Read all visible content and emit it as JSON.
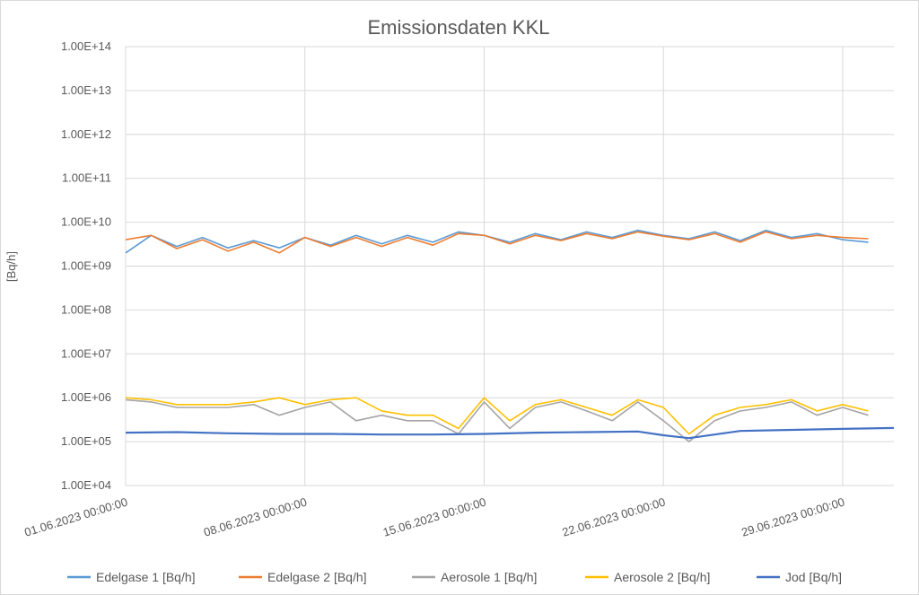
{
  "chart_data": {
    "type": "line",
    "title": "Emissionsdaten KKL",
    "xlabel": "",
    "ylabel": "[Bq/h]",
    "y_scale": "log",
    "ylim": [
      10000,
      100000000000000
    ],
    "y_ticks": [
      "1.00E+04",
      "1.00E+05",
      "1.00E+06",
      "1.00E+07",
      "1.00E+08",
      "1.00E+09",
      "1.00E+10",
      "1.00E+11",
      "1.00E+12",
      "1.00E+13",
      "1.00E+14"
    ],
    "xlim": [
      "01.06.2023 00:00:00",
      "01.07.2023 00:00:00"
    ],
    "x_ticks": [
      "01.06.2023 00:00:00",
      "08.06.2023 00:00:00",
      "15.06.2023 00:00:00",
      "22.06.2023 00:00:00",
      "29.06.2023 00:00:00"
    ],
    "grid": true,
    "legend_position": "bottom",
    "colors": {
      "Edelgase 1 [Bq/h]": "#5b9bd5",
      "Edelgase 2 [Bq/h]": "#ed7d31",
      "Aerosole 1 [Bq/h]": "#a5a5a5",
      "Aerosole 2 [Bq/h]": "#ffc000",
      "Jod [Bq/h]": "#4472c4"
    },
    "series": [
      {
        "name": "Edelgase 1 [Bq/h]",
        "x": [
          "2023-06-01",
          "2023-06-02",
          "2023-06-03",
          "2023-06-04",
          "2023-06-05",
          "2023-06-06",
          "2023-06-07",
          "2023-06-08",
          "2023-06-09",
          "2023-06-10",
          "2023-06-11",
          "2023-06-12",
          "2023-06-13",
          "2023-06-14",
          "2023-06-15",
          "2023-06-16",
          "2023-06-17",
          "2023-06-18",
          "2023-06-19",
          "2023-06-20",
          "2023-06-21",
          "2023-06-22",
          "2023-06-23",
          "2023-06-24",
          "2023-06-25",
          "2023-06-26",
          "2023-06-27",
          "2023-06-28",
          "2023-06-29",
          "2023-06-30"
        ],
        "y": [
          2000000000,
          5000000000,
          2800000000,
          4500000000,
          2600000000,
          3800000000,
          2600000000,
          4500000000,
          3000000000,
          5000000000,
          3200000000,
          5000000000,
          3500000000,
          6000000000,
          5000000000,
          3500000000,
          5500000000,
          4000000000,
          6000000000,
          4500000000,
          6500000000,
          5000000000,
          4200000000,
          6000000000,
          3800000000,
          6500000000,
          4500000000,
          5500000000,
          4000000000,
          3500000000
        ]
      },
      {
        "name": "Edelgase 2 [Bq/h]",
        "x": [
          "2023-06-01",
          "2023-06-02",
          "2023-06-03",
          "2023-06-04",
          "2023-06-05",
          "2023-06-06",
          "2023-06-07",
          "2023-06-08",
          "2023-06-09",
          "2023-06-10",
          "2023-06-11",
          "2023-06-12",
          "2023-06-13",
          "2023-06-14",
          "2023-06-15",
          "2023-06-16",
          "2023-06-17",
          "2023-06-18",
          "2023-06-19",
          "2023-06-20",
          "2023-06-21",
          "2023-06-22",
          "2023-06-23",
          "2023-06-24",
          "2023-06-25",
          "2023-06-26",
          "2023-06-27",
          "2023-06-28",
          "2023-06-29",
          "2023-06-30"
        ],
        "y": [
          4000000000,
          5000000000,
          2500000000,
          4000000000,
          2200000000,
          3500000000,
          2000000000,
          4500000000,
          2800000000,
          4500000000,
          2800000000,
          4500000000,
          3000000000,
          5500000000,
          5000000000,
          3200000000,
          5000000000,
          3800000000,
          5500000000,
          4200000000,
          6000000000,
          4800000000,
          4000000000,
          5500000000,
          3500000000,
          6000000000,
          4200000000,
          5000000000,
          4500000000,
          4200000000
        ]
      },
      {
        "name": "Aerosole 1 [Bq/h]",
        "x": [
          "2023-06-01",
          "2023-06-02",
          "2023-06-03",
          "2023-06-04",
          "2023-06-05",
          "2023-06-06",
          "2023-06-07",
          "2023-06-08",
          "2023-06-09",
          "2023-06-10",
          "2023-06-11",
          "2023-06-12",
          "2023-06-13",
          "2023-06-14",
          "2023-06-15",
          "2023-06-16",
          "2023-06-17",
          "2023-06-18",
          "2023-06-19",
          "2023-06-20",
          "2023-06-21",
          "2023-06-22",
          "2023-06-23",
          "2023-06-24",
          "2023-06-25",
          "2023-06-26",
          "2023-06-27",
          "2023-06-28",
          "2023-06-29",
          "2023-06-30"
        ],
        "y": [
          900000,
          800000,
          600000,
          600000,
          600000,
          700000,
          400000,
          600000,
          800000,
          300000,
          400000,
          300000,
          300000,
          150000,
          800000,
          200000,
          600000,
          800000,
          500000,
          300000,
          800000,
          300000,
          100000,
          300000,
          500000,
          600000,
          800000,
          400000,
          600000,
          400000
        ]
      },
      {
        "name": "Aerosole 2 [Bq/h]",
        "x": [
          "2023-06-01",
          "2023-06-02",
          "2023-06-03",
          "2023-06-04",
          "2023-06-05",
          "2023-06-06",
          "2023-06-07",
          "2023-06-08",
          "2023-06-09",
          "2023-06-10",
          "2023-06-11",
          "2023-06-12",
          "2023-06-13",
          "2023-06-14",
          "2023-06-15",
          "2023-06-16",
          "2023-06-17",
          "2023-06-18",
          "2023-06-19",
          "2023-06-20",
          "2023-06-21",
          "2023-06-22",
          "2023-06-23",
          "2023-06-24",
          "2023-06-25",
          "2023-06-26",
          "2023-06-27",
          "2023-06-28",
          "2023-06-29",
          "2023-06-30"
        ],
        "y": [
          1000000,
          900000,
          700000,
          700000,
          700000,
          800000,
          1000000,
          700000,
          900000,
          1000000,
          500000,
          400000,
          400000,
          200000,
          1000000,
          300000,
          700000,
          900000,
          600000,
          400000,
          900000,
          600000,
          150000,
          400000,
          600000,
          700000,
          900000,
          500000,
          700000,
          500000
        ]
      },
      {
        "name": "Jod [Bq/h]",
        "x": [
          "2023-06-01",
          "2023-06-03",
          "2023-06-05",
          "2023-06-07",
          "2023-06-09",
          "2023-06-11",
          "2023-06-13",
          "2023-06-15",
          "2023-06-17",
          "2023-06-19",
          "2023-06-21",
          "2023-06-22",
          "2023-06-23",
          "2023-06-25",
          "2023-06-27",
          "2023-06-29",
          "2023-07-01"
        ],
        "y": [
          160000,
          165000,
          155000,
          150000,
          150000,
          145000,
          145000,
          150000,
          160000,
          165000,
          170000,
          140000,
          120000,
          175000,
          185000,
          195000,
          205000
        ]
      }
    ]
  }
}
